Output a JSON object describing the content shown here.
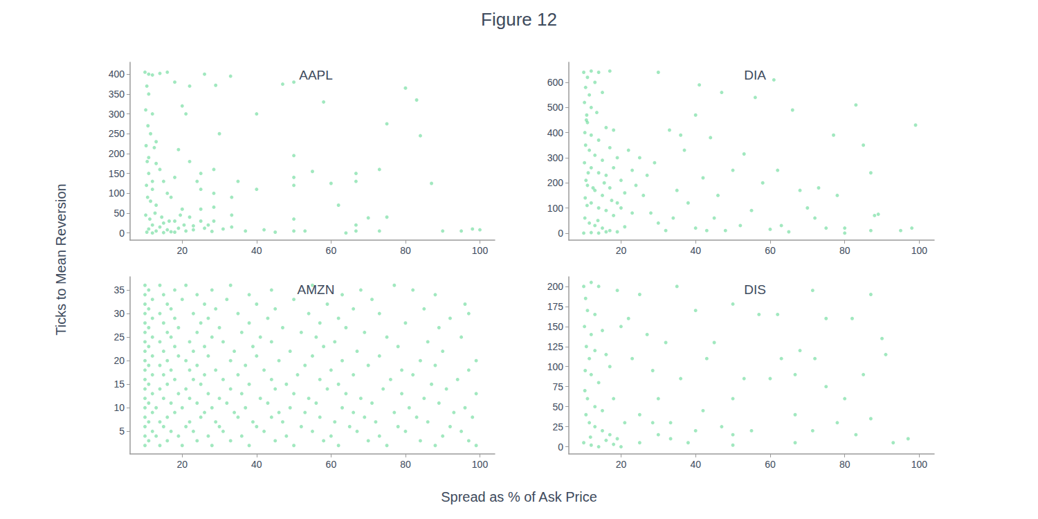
{
  "title": "Figure 12",
  "xlabel": "Spread as % of Ask Price",
  "ylabel": "Ticks to Mean Reversion",
  "chart_data": [
    {
      "type": "scatter",
      "title": "AAPL",
      "color": "#2ecc71",
      "marker": "circle",
      "grid": false,
      "xlim": [
        6,
        104
      ],
      "xticks": [
        20,
        40,
        60,
        80,
        100
      ],
      "ylim": [
        -18,
        430
      ],
      "yticks": [
        0,
        50,
        100,
        150,
        200,
        250,
        300,
        350,
        400
      ],
      "x": [
        10,
        11,
        12,
        14,
        16,
        10.5,
        11,
        10.2,
        12,
        10.8,
        11.5,
        10.3,
        12.5,
        10.6,
        13,
        11,
        14,
        10.4,
        12,
        15,
        10.7,
        11.5,
        13,
        16,
        18,
        17,
        19,
        20,
        21,
        22,
        24,
        25,
        25,
        25,
        25,
        20,
        22,
        18,
        15,
        12,
        11,
        13,
        14,
        16,
        17,
        19,
        21,
        23,
        10.5,
        12,
        15,
        18,
        27,
        28.5,
        28.5,
        28.5,
        28.5,
        30,
        31,
        33.3,
        33.3,
        33.3,
        35,
        37,
        40,
        40,
        42,
        45,
        47,
        50,
        50,
        50,
        50,
        50,
        50,
        53,
        55,
        58,
        60,
        62,
        66.7,
        66.7,
        66.7,
        66.7,
        73,
        73,
        75,
        75,
        80,
        83,
        84,
        87,
        90,
        95,
        98,
        100,
        64,
        70,
        22,
        26,
        33,
        18,
        29,
        11,
        13,
        12,
        10.2,
        11.3,
        12.7,
        14.5,
        16.5,
        19.5,
        20.5,
        23,
        26,
        28
      ],
      "values": [
        405,
        400,
        398,
        402,
        405,
        370,
        350,
        310,
        300,
        270,
        250,
        220,
        215,
        180,
        175,
        150,
        160,
        120,
        110,
        130,
        90,
        80,
        70,
        100,
        140,
        90,
        210,
        320,
        300,
        180,
        130,
        150,
        110,
        60,
        30,
        60,
        40,
        30,
        25,
        20,
        10,
        5,
        15,
        8,
        3,
        12,
        5,
        18,
        2,
        0,
        1,
        2,
        20,
        160,
        100,
        65,
        30,
        250,
        10,
        90,
        45,
        15,
        130,
        5,
        300,
        110,
        8,
        2,
        375,
        380,
        195,
        140,
        120,
        35,
        5,
        5,
        155,
        330,
        125,
        70,
        150,
        130,
        20,
        5,
        160,
        5,
        275,
        40,
        365,
        335,
        245,
        125,
        5,
        5,
        10,
        8,
        0,
        38,
        370,
        400,
        395,
        380,
        372,
        190,
        230,
        130,
        45,
        35,
        50,
        40,
        30,
        45,
        20,
        8,
        12,
        4
      ]
    },
    {
      "type": "scatter",
      "title": "DIA",
      "color": "#2ecc71",
      "marker": "circle",
      "grid": false,
      "xlim": [
        6,
        104
      ],
      "xticks": [
        20,
        40,
        60,
        80,
        100
      ],
      "ylim": [
        -28,
        680
      ],
      "yticks": [
        0,
        100,
        200,
        300,
        400,
        500,
        600
      ],
      "x": [
        10,
        11,
        12,
        14,
        17,
        10.5,
        11.5,
        13,
        10.2,
        12,
        15,
        10.8,
        11,
        13.5,
        16,
        10.3,
        12,
        14,
        18,
        10.5,
        11.5,
        13,
        15,
        17,
        19,
        10.2,
        12,
        14,
        16,
        18,
        20,
        22,
        10.6,
        11,
        13,
        15,
        17,
        19,
        21,
        24,
        10.4,
        12,
        14,
        16,
        18,
        20,
        23,
        26,
        10.3,
        11.5,
        13,
        15,
        17,
        19,
        21,
        10,
        12,
        14,
        16,
        25,
        27,
        28,
        30,
        30,
        32,
        33,
        35,
        36,
        38,
        40,
        40,
        41,
        42,
        44,
        45,
        46,
        48,
        50,
        52,
        53,
        55,
        56,
        58,
        60,
        61,
        62,
        63,
        65,
        66,
        68,
        70,
        72,
        73,
        75,
        77,
        78,
        80,
        80,
        83,
        85,
        87,
        87,
        88,
        89,
        95,
        98,
        99,
        47,
        37,
        29,
        23,
        34,
        43,
        10.7,
        11.2,
        12.5,
        10.9,
        13.8,
        15.5,
        17.5
      ],
      "values": [
        640,
        620,
        645,
        640,
        645,
        580,
        550,
        600,
        520,
        500,
        560,
        470,
        440,
        480,
        420,
        400,
        390,
        370,
        410,
        350,
        330,
        310,
        290,
        340,
        300,
        280,
        260,
        240,
        230,
        260,
        210,
        330,
        210,
        190,
        170,
        150,
        180,
        120,
        160,
        190,
        140,
        120,
        100,
        90,
        70,
        100,
        80,
        150,
        60,
        40,
        30,
        20,
        10,
        5,
        25,
        0,
        2,
        0,
        5,
        300,
        230,
        80,
        40,
        640,
        10,
        410,
        170,
        390,
        120,
        20,
        470,
        590,
        220,
        380,
        60,
        150,
        10,
        250,
        30,
        315,
        90,
        540,
        200,
        15,
        610,
        250,
        30,
        5,
        490,
        170,
        100,
        60,
        180,
        20,
        390,
        150,
        0,
        20,
        510,
        350,
        240,
        10,
        70,
        75,
        10,
        20,
        430,
        560,
        330,
        280,
        250,
        60,
        10,
        450,
        240,
        180,
        110,
        50,
        200,
        130
      ]
    },
    {
      "type": "scatter",
      "title": "AMZN",
      "color": "#2ecc71",
      "marker": "circle",
      "grid": false,
      "xlim": [
        6,
        104
      ],
      "xticks": [
        20,
        40,
        60,
        80,
        100
      ],
      "ylim": [
        0.2,
        37.8
      ],
      "yticks": [
        5,
        10,
        15,
        20,
        25,
        30,
        35
      ],
      "x": [
        10,
        14,
        20,
        28,
        38,
        50,
        62,
        75,
        88,
        99,
        11,
        16,
        24,
        33,
        45,
        58,
        70,
        84,
        97,
        10,
        13,
        19,
        27,
        36,
        48,
        60,
        73,
        90,
        12,
        17,
        23,
        31,
        42,
        55,
        67,
        80,
        95,
        10,
        15,
        21,
        30,
        40,
        52,
        65,
        78,
        92,
        11,
        14,
        22,
        29,
        39,
        47,
        61,
        72,
        86,
        10,
        16,
        25,
        35,
        44,
        57,
        69,
        83,
        98,
        12,
        18,
        26,
        34,
        46,
        53,
        66,
        77,
        93,
        10,
        13,
        20,
        28,
        37,
        49,
        63,
        81,
        96,
        11,
        17,
        24,
        32,
        43,
        56,
        71,
        89,
        10,
        15,
        22,
        30,
        41,
        54,
        68,
        85,
        12,
        19,
        27,
        36,
        50,
        64,
        79,
        99,
        10,
        14,
        21,
        33,
        45,
        59,
        74,
        91,
        11,
        16,
        25,
        38,
        48,
        62,
        87,
        10,
        18,
        23,
        31,
        44,
        57,
        76,
        94,
        12,
        15,
        26,
        35,
        51,
        66,
        82,
        10,
        17,
        22,
        29,
        42,
        60,
        79,
        97,
        11,
        14,
        24,
        37,
        53,
        70,
        88,
        10,
        16,
        21,
        33,
        46,
        63,
        84,
        99,
        12,
        19,
        27,
        40,
        55,
        73,
        10,
        15,
        23,
        34,
        49,
        67,
        90,
        11,
        18,
        26,
        39,
        58,
        78,
        10,
        14,
        22,
        31,
        44,
        61,
        86,
        12,
        17,
        28,
        41,
        56,
        75,
        95,
        10,
        16,
        24,
        36,
        52,
        69,
        11,
        19,
        30,
        47,
        64,
        89,
        10,
        15,
        25,
        38,
        57,
        80,
        12,
        18,
        27,
        43,
        62,
        92,
        10,
        14,
        23,
        35,
        54,
        73,
        97,
        11,
        17,
        29,
        45,
        66,
        85,
        10,
        16,
        26,
        40,
        59,
        96,
        12,
        20,
        32,
        50,
        71,
        10,
        15,
        24,
        38,
        63,
        88,
        11,
        18,
        28,
        44,
        68,
        82,
        10,
        14,
        21,
        33,
        55,
        77
      ],
      "values": [
        2,
        2,
        2,
        2,
        2,
        2,
        2,
        2,
        2,
        2,
        3,
        3,
        3,
        3,
        3,
        3,
        3,
        3,
        3,
        4,
        4,
        4,
        4,
        4,
        4,
        4,
        4,
        4,
        5,
        5,
        5,
        5,
        5,
        5,
        5,
        5,
        5,
        6,
        6,
        6,
        6,
        6,
        6,
        6,
        6,
        6,
        7,
        7,
        7,
        7,
        7,
        7,
        7,
        7,
        7,
        8,
        8,
        8,
        8,
        8,
        8,
        8,
        8,
        8,
        9,
        9,
        9,
        9,
        9,
        9,
        9,
        9,
        9,
        10,
        10,
        10,
        10,
        10,
        10,
        10,
        10,
        10,
        11,
        11,
        11,
        11,
        11,
        11,
        11,
        11,
        12,
        12,
        12,
        12,
        12,
        12,
        12,
        12,
        13,
        13,
        13,
        13,
        13,
        13,
        13,
        13,
        14,
        14,
        14,
        14,
        14,
        14,
        14,
        14,
        15,
        15,
        15,
        15,
        15,
        15,
        15,
        16,
        16,
        16,
        16,
        16,
        16,
        16,
        16,
        17,
        17,
        17,
        17,
        17,
        17,
        17,
        18,
        18,
        18,
        18,
        18,
        18,
        18,
        18,
        19,
        19,
        19,
        19,
        19,
        19,
        19,
        20,
        20,
        20,
        20,
        20,
        20,
        20,
        20,
        21,
        21,
        21,
        21,
        21,
        21,
        22,
        22,
        22,
        22,
        22,
        22,
        22,
        23,
        23,
        23,
        23,
        23,
        23,
        24,
        24,
        24,
        24,
        24,
        24,
        24,
        25,
        25,
        25,
        25,
        25,
        25,
        25,
        26,
        26,
        26,
        26,
        26,
        26,
        27,
        27,
        27,
        27,
        27,
        27,
        28,
        28,
        28,
        28,
        28,
        28,
        29,
        29,
        29,
        29,
        29,
        29,
        30,
        30,
        30,
        30,
        30,
        30,
        30,
        31,
        31,
        31,
        31,
        31,
        31,
        32,
        32,
        32,
        32,
        32,
        32,
        33,
        33,
        33,
        33,
        33,
        34,
        34,
        34,
        34,
        34,
        34,
        35,
        35,
        35,
        35,
        35,
        35,
        36,
        36,
        36,
        36,
        36,
        36
      ]
    },
    {
      "type": "scatter",
      "title": "DIS",
      "color": "#2ecc71",
      "marker": "circle",
      "grid": false,
      "xlim": [
        6,
        104
      ],
      "xticks": [
        20,
        40,
        60,
        80,
        100
      ],
      "ylim": [
        -9,
        212
      ],
      "yticks": [
        0,
        25,
        50,
        75,
        100,
        125,
        150,
        175,
        200
      ],
      "x": [
        10,
        12,
        14,
        10.5,
        11,
        13,
        10.2,
        12,
        15,
        10.7,
        11.5,
        13,
        16,
        10.4,
        12,
        14,
        17,
        19,
        10.3,
        11,
        13,
        15,
        18,
        20,
        10.6,
        11.5,
        13,
        15,
        17,
        19,
        21,
        10,
        12,
        14,
        16,
        18,
        20,
        22,
        23,
        25,
        25,
        25,
        27,
        28.5,
        28.5,
        30,
        30,
        33.3,
        33.3,
        35,
        36,
        38,
        40,
        40,
        42,
        45,
        47,
        50,
        50,
        50,
        50,
        53,
        55,
        57,
        60,
        62,
        63,
        66.7,
        66.7,
        66.7,
        68,
        71.4,
        71.4,
        72,
        75,
        75,
        78,
        80,
        82,
        83,
        85,
        87,
        87,
        90,
        91,
        93,
        97,
        43,
        32,
        11.8
      ],
      "values": [
        200,
        205,
        200,
        185,
        170,
        165,
        150,
        140,
        145,
        125,
        110,
        120,
        115,
        95,
        90,
        80,
        100,
        195,
        70,
        60,
        50,
        45,
        60,
        150,
        40,
        30,
        25,
        20,
        15,
        10,
        30,
        5,
        2,
        0,
        8,
        3,
        0,
        160,
        110,
        190,
        40,
        5,
        140,
        95,
        30,
        60,
        15,
        30,
        10,
        200,
        85,
        5,
        170,
        20,
        45,
        130,
        25,
        178,
        60,
        15,
        2,
        85,
        20,
        165,
        85,
        165,
        110,
        90,
        40,
        5,
        120,
        195,
        20,
        110,
        160,
        75,
        30,
        60,
        160,
        15,
        90,
        190,
        35,
        135,
        115,
        5,
        10,
        110,
        130,
        12
      ]
    }
  ]
}
